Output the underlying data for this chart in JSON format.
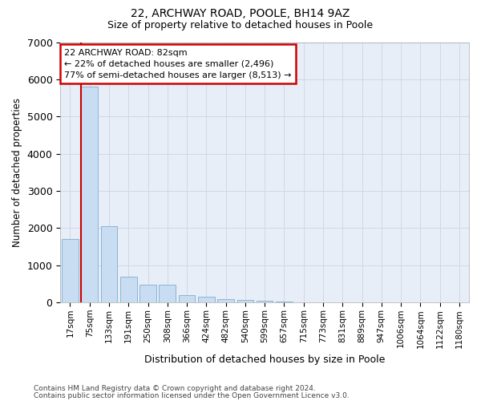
{
  "title1": "22, ARCHWAY ROAD, POOLE, BH14 9AZ",
  "title2": "Size of property relative to detached houses in Poole",
  "xlabel": "Distribution of detached houses by size in Poole",
  "ylabel": "Number of detached properties",
  "categories": [
    "17sqm",
    "75sqm",
    "133sqm",
    "191sqm",
    "250sqm",
    "308sqm",
    "366sqm",
    "424sqm",
    "482sqm",
    "540sqm",
    "599sqm",
    "657sqm",
    "715sqm",
    "773sqm",
    "831sqm",
    "889sqm",
    "947sqm",
    "1006sqm",
    "1064sqm",
    "1122sqm",
    "1180sqm"
  ],
  "values": [
    1700,
    5800,
    2050,
    700,
    480,
    480,
    210,
    150,
    100,
    60,
    50,
    30,
    5,
    2,
    0,
    0,
    0,
    0,
    0,
    0,
    0
  ],
  "bar_color": "#c9ddf2",
  "bar_edge_color": "#8ab4d8",
  "vline_x_pos": 0.57,
  "vline_color": "#cc0000",
  "annotation_text": "22 ARCHWAY ROAD: 82sqm\n← 22% of detached houses are smaller (2,496)\n77% of semi-detached houses are larger (8,513) →",
  "annotation_box_color": "#ffffff",
  "annotation_box_edge": "#cc0000",
  "ylim_max": 7000,
  "yticks": [
    0,
    1000,
    2000,
    3000,
    4000,
    5000,
    6000,
    7000
  ],
  "grid_color": "#ced8e8",
  "background_color": "#e8eef7",
  "footer1": "Contains HM Land Registry data © Crown copyright and database right 2024.",
  "footer2": "Contains public sector information licensed under the Open Government Licence v3.0."
}
